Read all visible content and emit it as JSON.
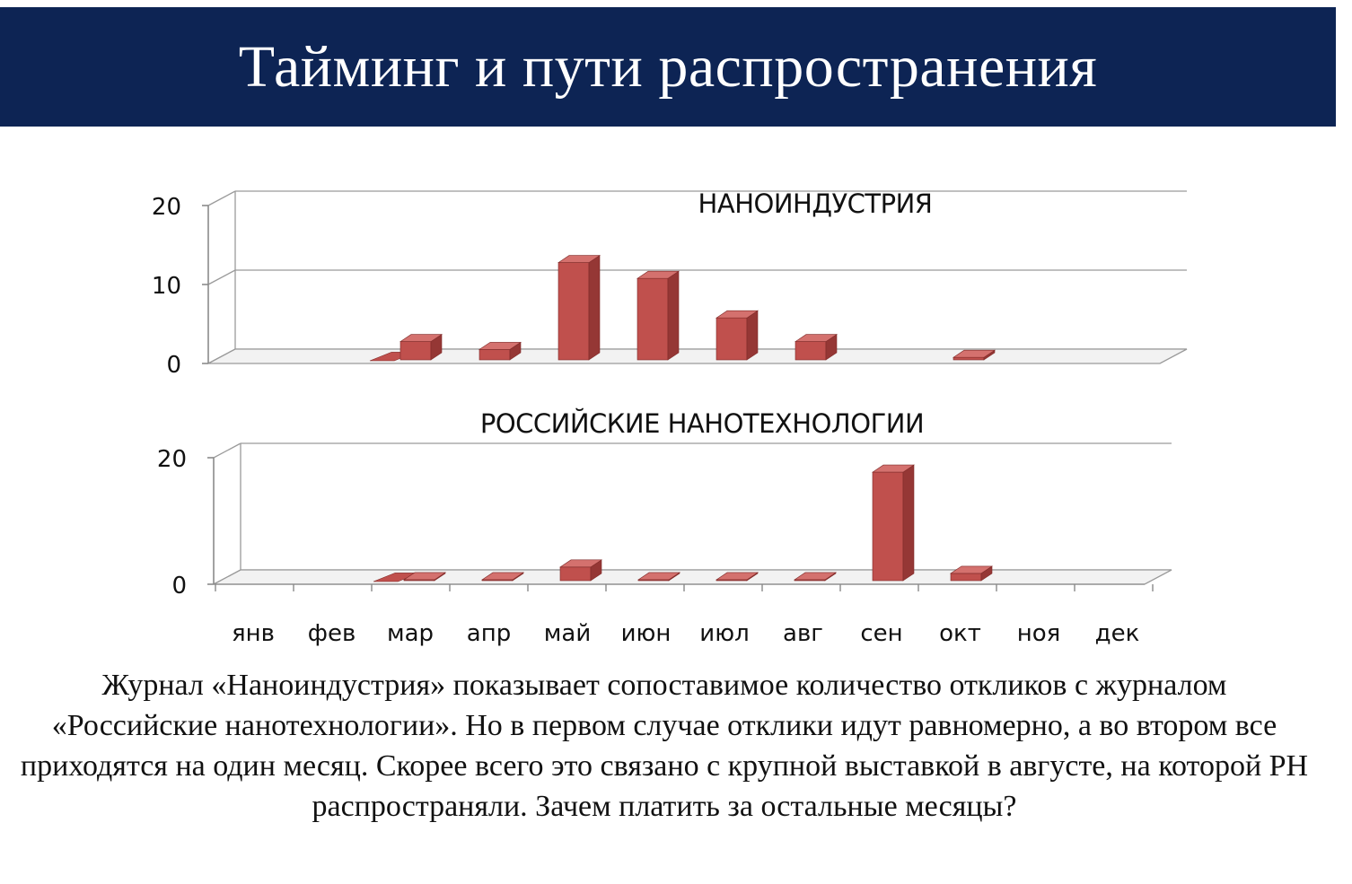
{
  "slide": {
    "title": "Тайминг и пути распространения",
    "caption": "Журнал «Наноиндустрия» показывает сопоставимое количество откликов с журналом «Российские нанотехнологии». Но в первом случае отклики идут равномерно, а во втором все приходятся на один месяц. Скорее всего это связано с крупной выставкой в августе, на которой РН распространяли. Зачем платить за остальные месяцы?"
  },
  "colors": {
    "header_bg": "#0d2454",
    "bar_front": "#c0504d",
    "bar_side": "#953735",
    "bar_top": "#d4716e"
  },
  "chart_data": [
    {
      "type": "bar",
      "title": "НАНОИНДУСТРИЯ",
      "categories": [
        "янв",
        "фев",
        "мар",
        "апр",
        "май",
        "июн",
        "июл",
        "авг",
        "сен",
        "окт",
        "ноя",
        "дек"
      ],
      "values": [
        0,
        0,
        3,
        2,
        13,
        11,
        6,
        3,
        0,
        1,
        0,
        0
      ],
      "yticks": [
        0,
        10,
        20
      ],
      "ylim": [
        0,
        20
      ],
      "grid": true,
      "style": "3d-column"
    },
    {
      "type": "bar",
      "title": "РОССИЙСКИЕ НАНОТЕХНОЛОГИИ",
      "categories": [
        "янв",
        "фев",
        "мар",
        "апр",
        "май",
        "июн",
        "июл",
        "авг",
        "сен",
        "окт",
        "ноя",
        "дек"
      ],
      "values": [
        0,
        0,
        1,
        1,
        3,
        1,
        1,
        1,
        18,
        2,
        0,
        0
      ],
      "yticks": [
        0,
        20
      ],
      "ylim": [
        0,
        20
      ],
      "grid": true,
      "style": "3d-column"
    }
  ]
}
